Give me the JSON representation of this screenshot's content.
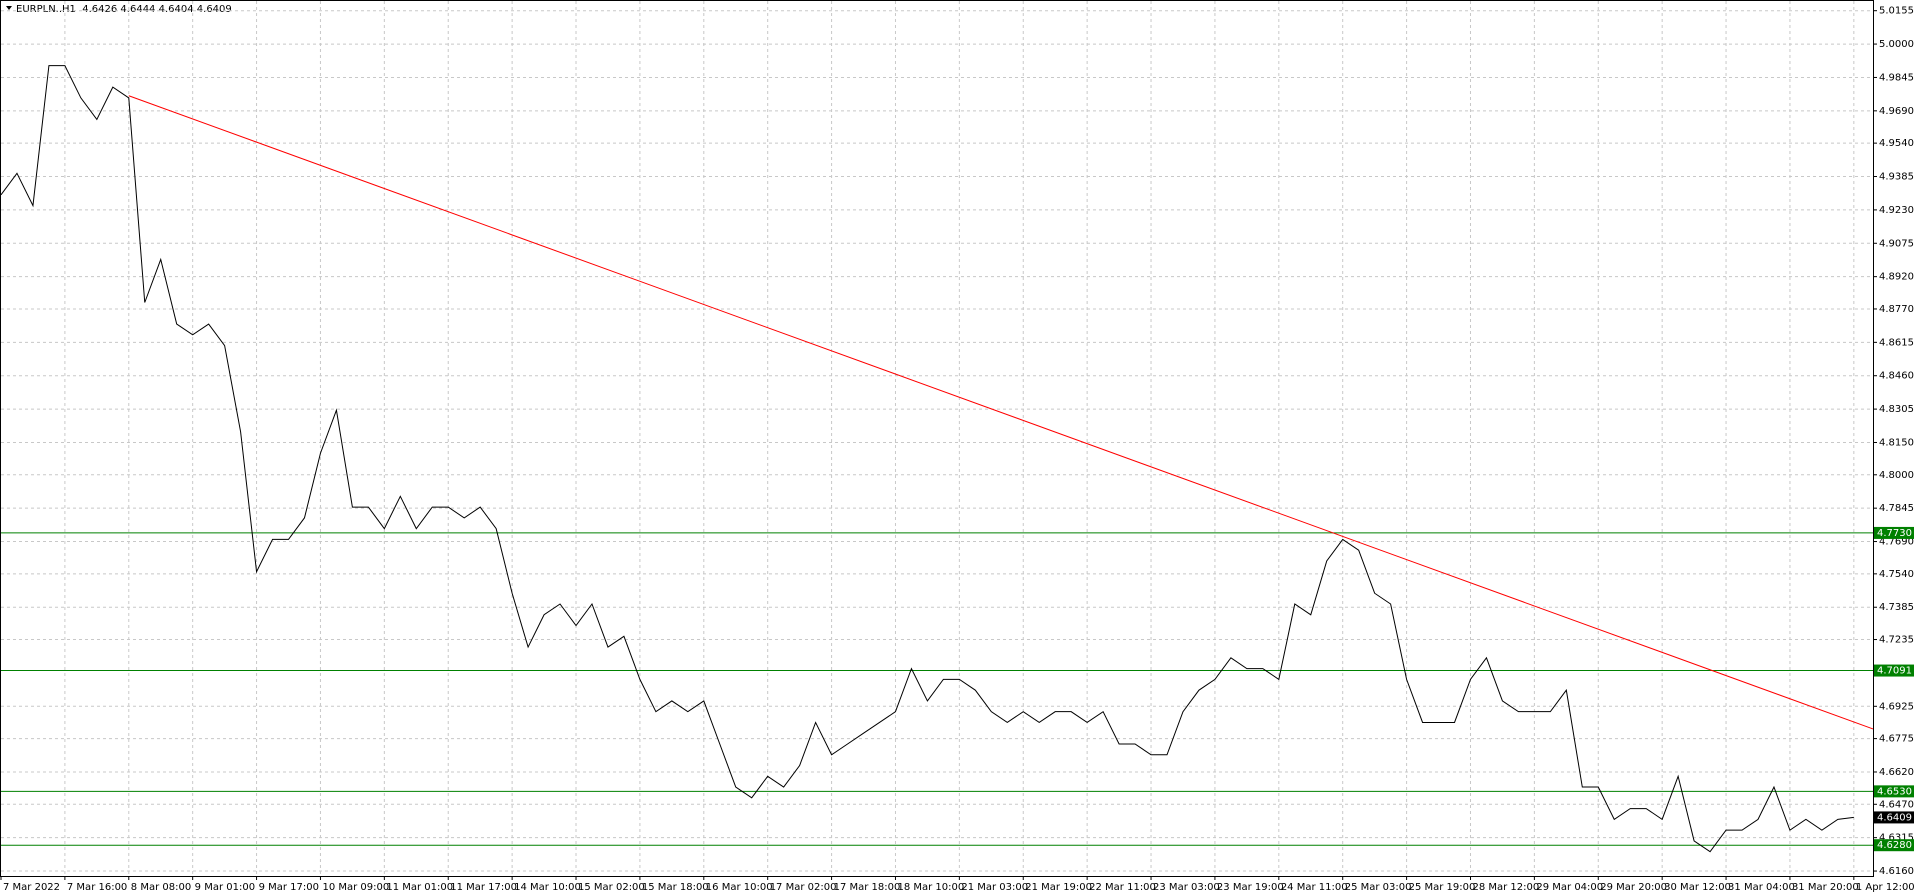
{
  "chart_data": {
    "type": "line",
    "title": "EURPLN..H1  4.6426 4.6444 4.6404 4.6409",
    "x": [
      0,
      1,
      2,
      3,
      4,
      5,
      6,
      7,
      8,
      9,
      10,
      11,
      12,
      13,
      14,
      15,
      16,
      17,
      18,
      19,
      20,
      21,
      22,
      23,
      24,
      25,
      26,
      27,
      28,
      29,
      30,
      31,
      32,
      33,
      34,
      35,
      36,
      37,
      38,
      39,
      40,
      41,
      42,
      43,
      44,
      45,
      46,
      47,
      48,
      49,
      50,
      51,
      52,
      53,
      54,
      55,
      56,
      57,
      58,
      59,
      60,
      61,
      62,
      63,
      64,
      65,
      66,
      67,
      68,
      69,
      70,
      71,
      72,
      73,
      74,
      75,
      76,
      77,
      78,
      79,
      80,
      81,
      82,
      83,
      84,
      85,
      86,
      87,
      88,
      89,
      90,
      91,
      92,
      93,
      94,
      95,
      96,
      97,
      98,
      99,
      100,
      101,
      102,
      103,
      104,
      105,
      106,
      107,
      108,
      109,
      110,
      111,
      112,
      113,
      114,
      115,
      116
    ],
    "series": [
      {
        "name": "EURPLN..H1",
        "color": "#000000",
        "values": [
          4.93,
          4.94,
          4.925,
          4.99,
          4.99,
          4.975,
          4.965,
          4.98,
          4.975,
          4.88,
          4.9,
          4.87,
          4.865,
          4.87,
          4.86,
          4.82,
          4.755,
          4.77,
          4.77,
          4.78,
          4.81,
          4.83,
          4.785,
          4.785,
          4.775,
          4.79,
          4.775,
          4.785,
          4.785,
          4.78,
          4.785,
          4.775,
          4.745,
          4.72,
          4.735,
          4.74,
          4.73,
          4.74,
          4.72,
          4.725,
          4.705,
          4.69,
          4.695,
          4.69,
          4.695,
          4.675,
          4.655,
          4.65,
          4.66,
          4.655,
          4.665,
          4.685,
          4.67,
          4.675,
          4.68,
          4.685,
          4.69,
          4.71,
          4.695,
          4.705,
          4.705,
          4.7,
          4.69,
          4.685,
          4.69,
          4.685,
          4.69,
          4.69,
          4.685,
          4.69,
          4.675,
          4.675,
          4.67,
          4.67,
          4.69,
          4.7,
          4.705,
          4.715,
          4.71,
          4.71,
          4.705,
          4.74,
          4.735,
          4.76,
          4.77,
          4.765,
          4.745,
          4.74,
          4.705,
          4.685,
          4.685,
          4.685,
          4.705,
          4.715,
          4.695,
          4.69,
          4.69,
          4.69,
          4.7,
          4.655,
          4.655,
          4.64,
          4.645,
          4.645,
          4.64,
          4.66,
          4.63,
          4.625,
          4.635,
          4.635,
          4.64,
          4.655,
          4.635,
          4.64,
          4.635,
          4.64,
          4.6409
        ]
      }
    ],
    "xlim": [
      0,
      117.2
    ],
    "ylim": [
      4.6137,
      5.02
    ],
    "xticks": [
      {
        "value": 0,
        "label": "7 Mar 2022"
      },
      {
        "value": 4,
        "label": "7 Mar 16:00"
      },
      {
        "value": 8,
        "label": "8 Mar 08:00"
      },
      {
        "value": 12,
        "label": "9 Mar 01:00"
      },
      {
        "value": 16,
        "label": "9 Mar 17:00"
      },
      {
        "value": 20,
        "label": "10 Mar 09:00"
      },
      {
        "value": 24,
        "label": "11 Mar 01:00"
      },
      {
        "value": 28,
        "label": "11 Mar 17:00"
      },
      {
        "value": 32,
        "label": "14 Mar 10:00"
      },
      {
        "value": 36,
        "label": "15 Mar 02:00"
      },
      {
        "value": 40,
        "label": "15 Mar 18:00"
      },
      {
        "value": 44,
        "label": "16 Mar 10:00"
      },
      {
        "value": 48,
        "label": "17 Mar 02:00"
      },
      {
        "value": 52,
        "label": "17 Mar 18:00"
      },
      {
        "value": 56,
        "label": "18 Mar 10:00"
      },
      {
        "value": 60,
        "label": "21 Mar 03:00"
      },
      {
        "value": 64,
        "label": "21 Mar 19:00"
      },
      {
        "value": 68,
        "label": "22 Mar 11:00"
      },
      {
        "value": 72,
        "label": "23 Mar 03:00"
      },
      {
        "value": 76,
        "label": "23 Mar 19:00"
      },
      {
        "value": 80,
        "label": "24 Mar 11:00"
      },
      {
        "value": 84,
        "label": "25 Mar 03:00"
      },
      {
        "value": 88,
        "label": "25 Mar 19:00"
      },
      {
        "value": 92,
        "label": "28 Mar 12:00"
      },
      {
        "value": 96,
        "label": "29 Mar 04:00"
      },
      {
        "value": 100,
        "label": "29 Mar 20:00"
      },
      {
        "value": 104,
        "label": "30 Mar 12:00"
      },
      {
        "value": 108,
        "label": "31 Mar 04:00"
      },
      {
        "value": 112,
        "label": "31 Mar 20:00"
      },
      {
        "value": 116,
        "label": "1 Apr 12:00"
      }
    ],
    "yticks": [
      5.0155,
      {
        "value": 5,
        "label": "5.0000"
      },
      4.9845,
      {
        "value": 4.969,
        "label": "4.9690"
      },
      {
        "value": 4.954,
        "label": "4.9540"
      },
      4.9385,
      {
        "value": 4.923,
        "label": "4.9230"
      },
      4.9075,
      {
        "value": 4.892,
        "label": "4.8920"
      },
      {
        "value": 4.877,
        "label": "4.8770"
      },
      4.8615,
      {
        "value": 4.846,
        "label": "4.8460"
      },
      4.8305,
      {
        "value": 4.815,
        "label": "4.8150"
      },
      {
        "value": 4.8,
        "label": "4.8000"
      },
      4.7845,
      {
        "value": 4.769,
        "label": "4.7690"
      },
      {
        "value": 4.754,
        "label": "4.7540"
      },
      4.7385,
      4.7235,
      4.6925,
      4.6775,
      {
        "value": 4.662,
        "label": "4.6620"
      },
      {
        "value": 4.647,
        "label": "4.6470"
      },
      4.6315,
      {
        "value": 4.616,
        "label": "4.6160"
      }
    ],
    "grid": true,
    "levels": [
      {
        "value": 4.773,
        "label": "4.7730"
      },
      {
        "value": 4.7091,
        "label": "4.7091"
      },
      {
        "value": 4.653,
        "label": "4.6530"
      },
      {
        "value": 4.628,
        "label": "4.6280"
      }
    ],
    "level_color": "#008000",
    "last_price": {
      "value": 4.6409,
      "label": "4.6409"
    },
    "trendline": {
      "color": "#ff0000",
      "x": [
        8,
        117.2
      ],
      "y": [
        4.976,
        4.682
      ]
    }
  }
}
